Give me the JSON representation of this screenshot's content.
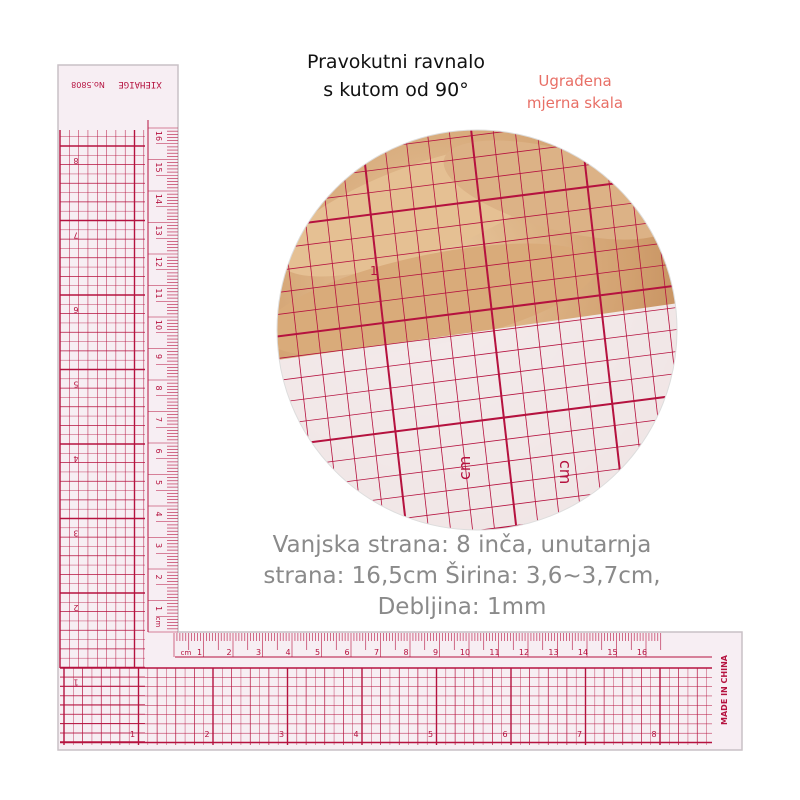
{
  "title": {
    "line1": "Pravokutni ravnalo",
    "line2": "s kutom od 90°"
  },
  "feature": {
    "line1": "Ugrađena",
    "line2": "mjerna skala"
  },
  "spec": {
    "line1": "Vanjska strana: 8 inča, unutarnja",
    "line2": "strana: 16,5cm Širina: 3,6~3,7cm,",
    "line3": "Debljina: 1mm"
  },
  "ruler": {
    "brand": "XIEHAIGE",
    "model": "No.5808",
    "origin_label": "MADE IN CHINA",
    "cm_unit": "cm",
    "cm_numbers": [
      "1",
      "2",
      "3",
      "4",
      "5",
      "6",
      "7",
      "8",
      "9",
      "10",
      "11",
      "12",
      "13",
      "14",
      "15",
      "16"
    ],
    "inch_numbers": [
      "1",
      "2",
      "3",
      "4",
      "5",
      "6",
      "7",
      "8"
    ],
    "line_color": "#b5123f",
    "body_color": "#f7eef3"
  },
  "zoom_photo": {
    "cm_label": "cm",
    "mark_1": "1"
  }
}
